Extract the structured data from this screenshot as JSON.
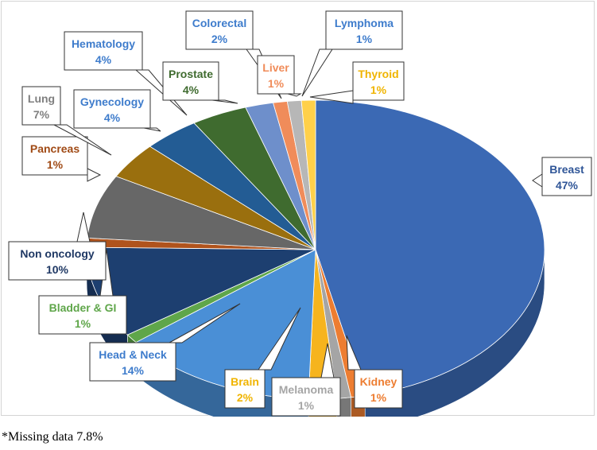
{
  "chart_data": {
    "type": "pie",
    "style": "3d-exploded",
    "title": "",
    "slices": [
      {
        "name": "Breast",
        "label": "47%",
        "value": 47,
        "color": "#3b69b4",
        "label_color": "#2f5597"
      },
      {
        "name": "Kidney",
        "label": "1%",
        "value": 1,
        "color": "#ed7d31",
        "label_color": "#ed7d31"
      },
      {
        "name": "Melanoma",
        "label": "1%",
        "value": 1,
        "color": "#a5a5a5",
        "label_color": "#a5a5a5"
      },
      {
        "name": "Brain",
        "label": "2%",
        "value": 2,
        "color": "#f6b41e",
        "label_color": "#f0b400"
      },
      {
        "name": "Head & Neck",
        "label": "14%",
        "value": 14,
        "color": "#4a8fd6",
        "label_color": "#3e7ccc"
      },
      {
        "name": "Bladder & GI",
        "label": "1%",
        "value": 1,
        "color": "#5fa64a",
        "label_color": "#5fa64a"
      },
      {
        "name": "Non oncology",
        "label": "10%",
        "value": 10,
        "color": "#1d3f70",
        "label_color": "#1f3864"
      },
      {
        "name": "Pancreas",
        "label": "1%",
        "value": 1,
        "color": "#b0531c",
        "label_color": "#a04a15"
      },
      {
        "name": "Lung",
        "label": "7%",
        "value": 7,
        "color": "#676767",
        "label_color": "#7f7f7f"
      },
      {
        "name": "Gynecology",
        "label": "4%",
        "value": 4,
        "color": "#9a6f0e",
        "label_color": "#3e7ccc"
      },
      {
        "name": "Hematology",
        "label": "4%",
        "value": 4,
        "color": "#235c94",
        "label_color": "#3e7ccc"
      },
      {
        "name": "Prostate",
        "label": "4%",
        "value": 4,
        "color": "#3f6b2f",
        "label_color": "#3f6b2f"
      },
      {
        "name": "Colorectal",
        "label": "2%",
        "value": 2,
        "color": "#6e8fcb",
        "label_color": "#3e7ccc"
      },
      {
        "name": "Liver",
        "label": "1%",
        "value": 1,
        "color": "#f08c5a",
        "label_color": "#f08c5a"
      },
      {
        "name": "Lymphoma",
        "label": "1%",
        "value": 1,
        "color": "#b7b7b7",
        "label_color": "#3e7ccc"
      },
      {
        "name": "Thyroid",
        "label": "1%",
        "value": 1,
        "color": "#ffd04a",
        "label_color": "#f0b400"
      }
    ]
  },
  "footnote": "*Missing data 7.8%"
}
